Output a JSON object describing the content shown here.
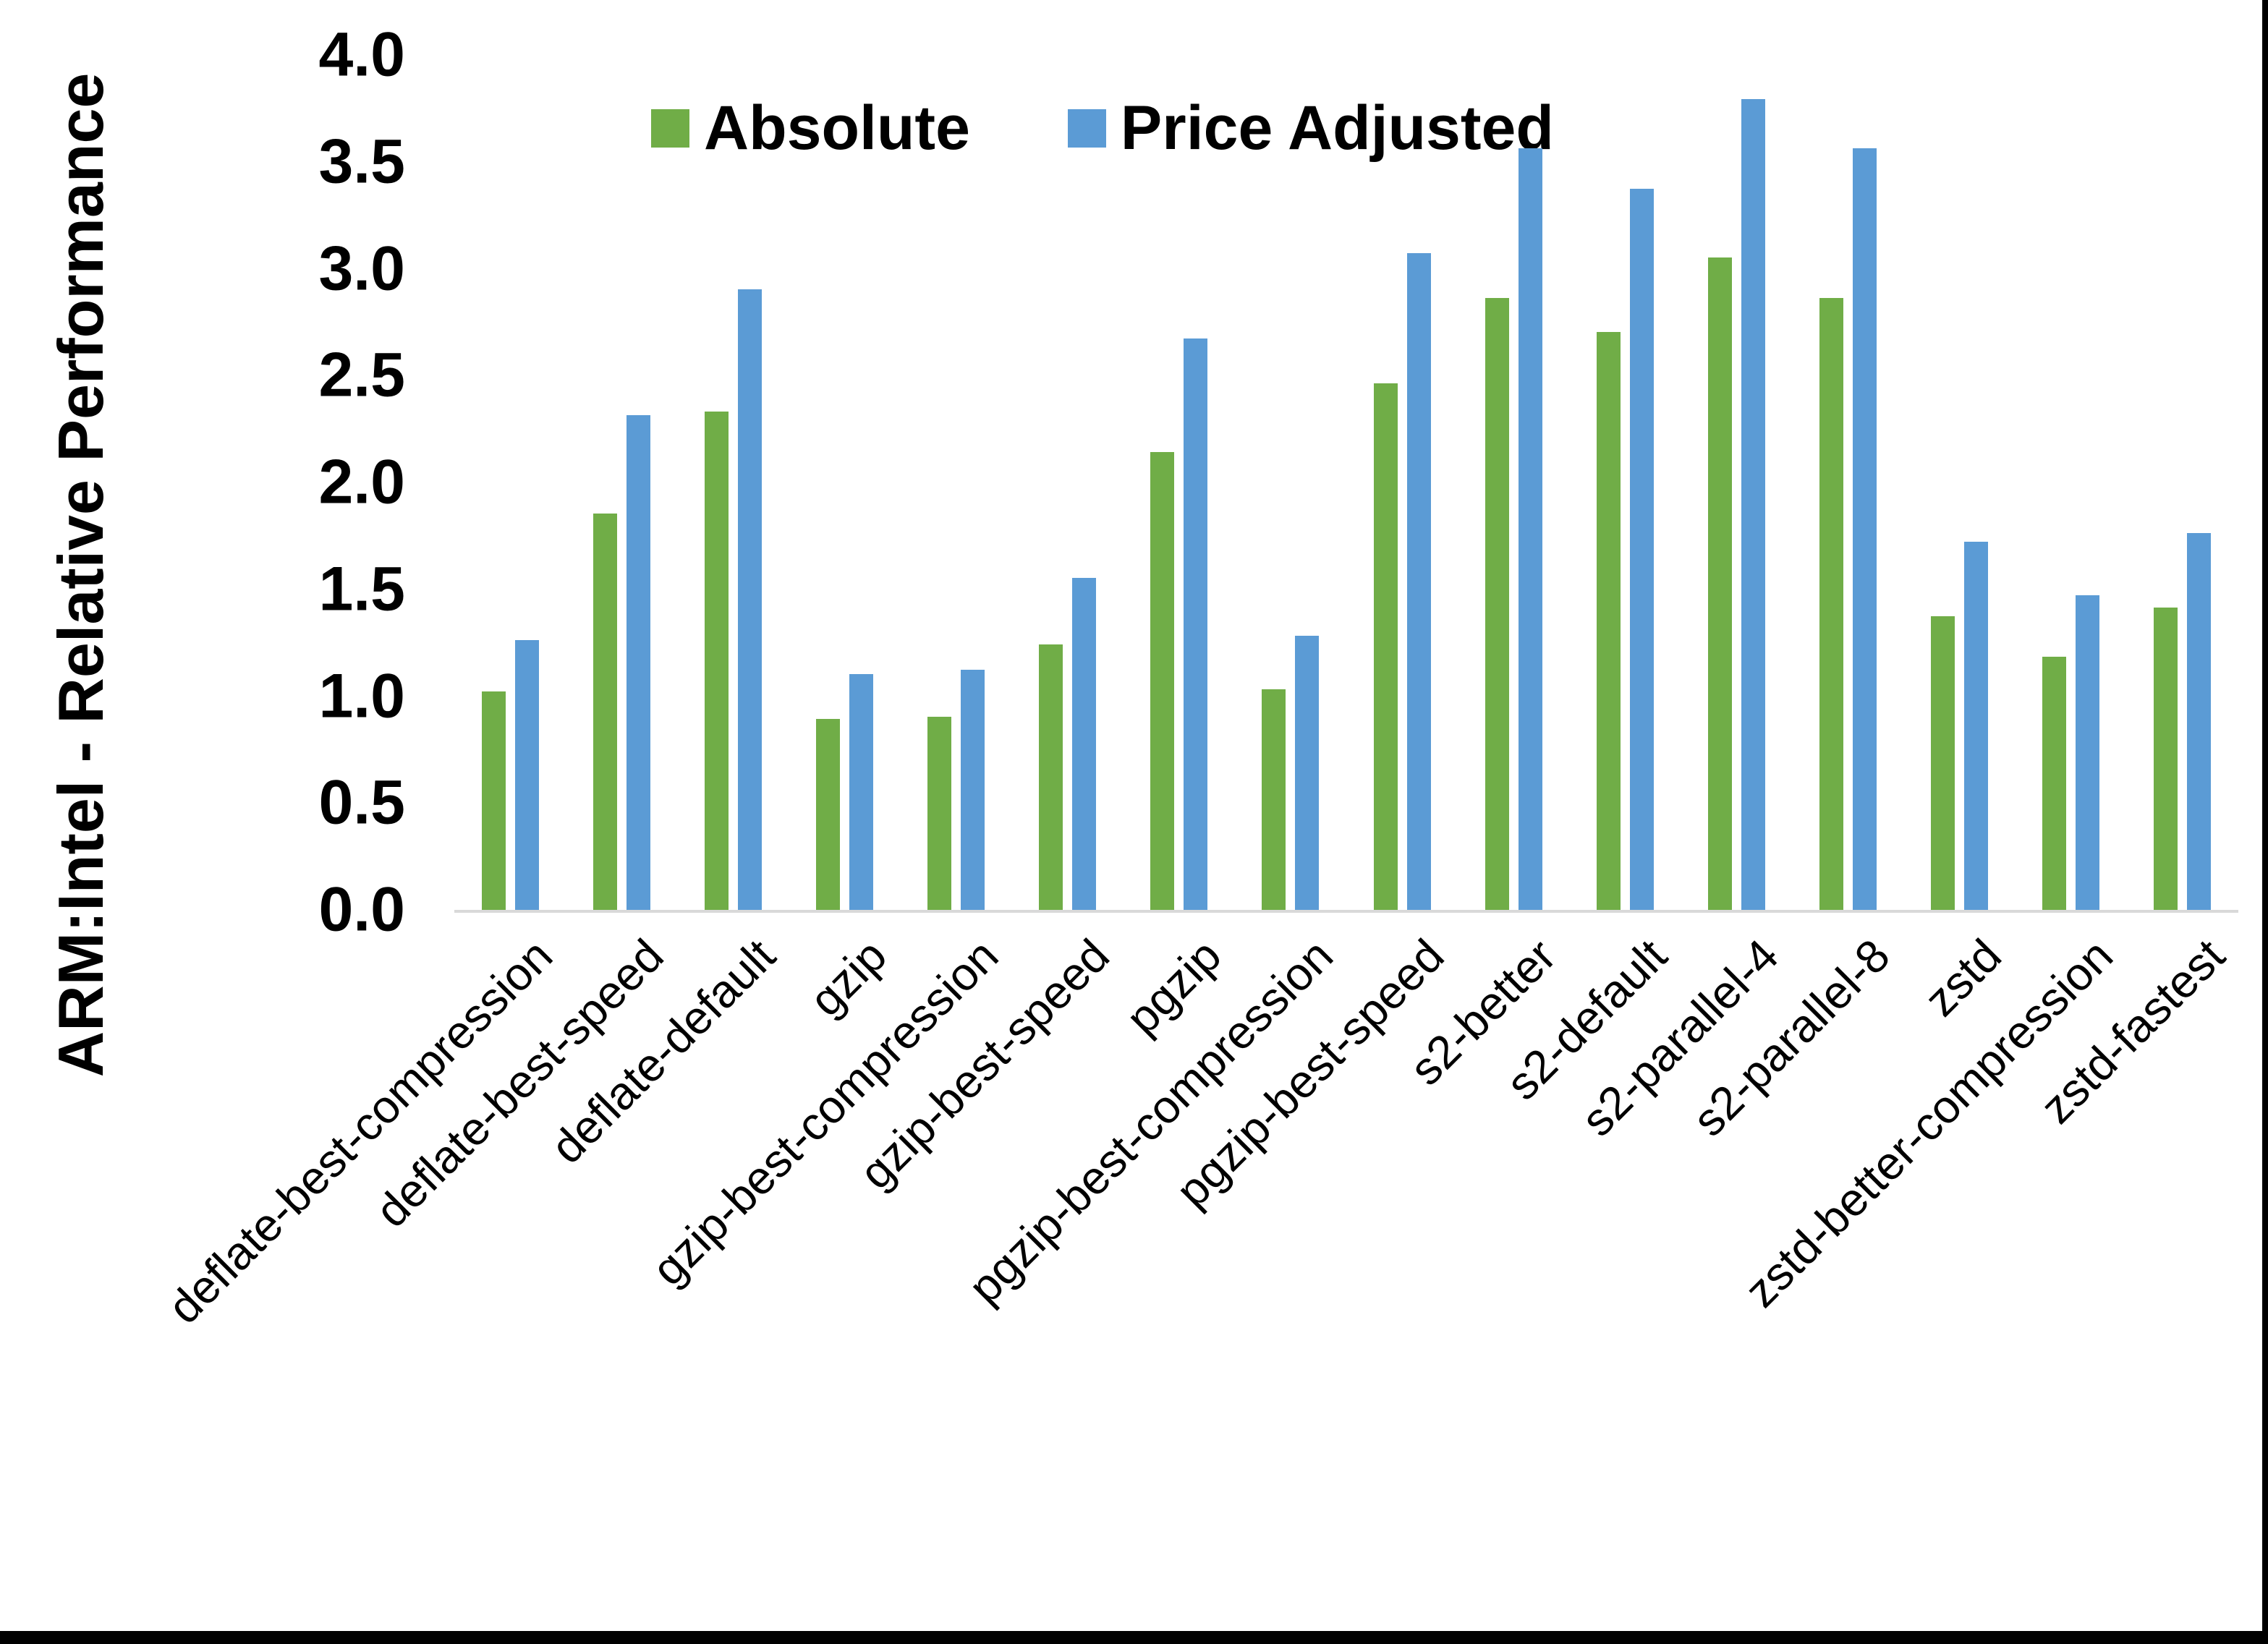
{
  "chart_data": {
    "type": "bar",
    "title": "",
    "xlabel": "",
    "ylabel": "ARM:Intel - Relative Performance",
    "ylim": [
      0.0,
      4.0
    ],
    "y_tick_step": 0.5,
    "y_ticks": [
      "0.0",
      "0.5",
      "1.0",
      "1.5",
      "2.0",
      "2.5",
      "3.0",
      "3.5",
      "4.0"
    ],
    "grid": false,
    "legend_position": "top-center",
    "background": "#ffffff",
    "axis_line_color": "#d9d9d9",
    "categories": [
      "deflate-best-compression",
      "deflate-best-speed",
      "deflate-default",
      "gzip",
      "gzip-best-compression",
      "gzip-best-speed",
      "pgzip",
      "pgzip-best-compression",
      "pgzip-best-speed",
      "s2-better",
      "s2-default",
      "s2-parallel-4",
      "s2-parallel-8",
      "zstd",
      "zstd-better-compression",
      "zstd-fastest"
    ],
    "series": [
      {
        "name": "Absolute",
        "color": "#70AD47",
        "values": [
          1.03,
          1.86,
          2.34,
          0.9,
          0.91,
          1.25,
          2.15,
          1.04,
          2.47,
          2.87,
          2.71,
          3.06,
          2.87,
          1.38,
          1.19,
          1.42
        ]
      },
      {
        "name": "Price Adjusted",
        "color": "#5B9BD5",
        "values": [
          1.27,
          2.32,
          2.91,
          1.11,
          1.13,
          1.56,
          2.68,
          1.29,
          3.08,
          3.57,
          3.38,
          3.8,
          3.57,
          1.73,
          1.48,
          1.77
        ]
      }
    ]
  }
}
